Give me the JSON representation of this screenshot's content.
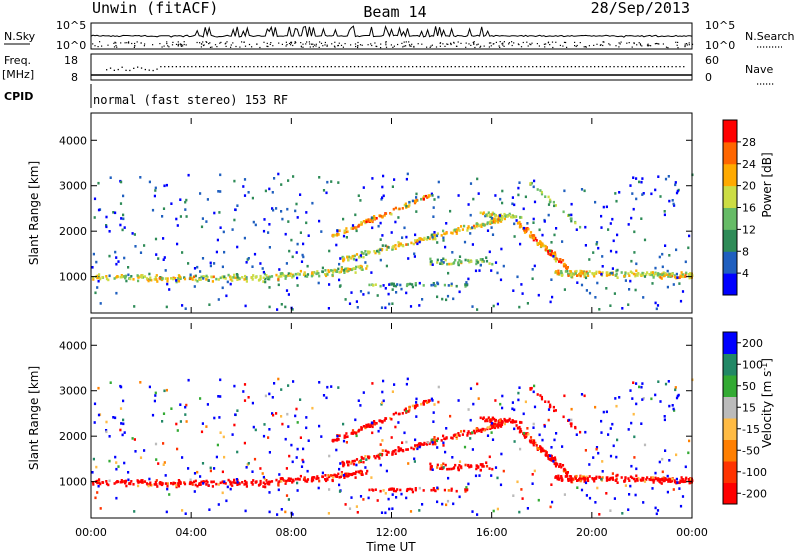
{
  "header": {
    "title": "Unwin (fitACF)",
    "beam": "Beam 14",
    "date": "28/Sep/2013"
  },
  "noise_panel": {
    "left_label": "N.Sky",
    "right_label": "N.Search",
    "tick_top": "10^5",
    "tick_bottom": "10^0"
  },
  "freq_panel": {
    "left_label_1": "Freq.",
    "left_label_2": "[MHz]",
    "right_label": "Nave",
    "left_ticks": [
      "18",
      "8"
    ],
    "right_ticks": [
      "60",
      "0"
    ]
  },
  "cpid_panel": {
    "label": "CPID",
    "text": "normal (fast stereo) 153 RF"
  },
  "colors": {
    "power_scale": [
      "#0000ff",
      "#1f5fbf",
      "#2e8b57",
      "#66bb66",
      "#ccdd44",
      "#ffaa00",
      "#ff6600",
      "#ff0000"
    ],
    "velocity_scale": [
      "#ff0000",
      "#ff3300",
      "#ff7f00",
      "#ffbb44",
      "#bbbbbb",
      "#33aa33",
      "#228866",
      "#0000ff"
    ]
  },
  "chart_data": [
    {
      "type": "heatmap",
      "name_role": "power",
      "ylabel": "Slant Range [km]",
      "y_ticks": [
        "1000",
        "2000",
        "3000",
        "4000"
      ],
      "ylim": [
        200,
        4600
      ],
      "colorbar_label": "Power [dB]",
      "colorbar_ticks": [
        "4",
        "8",
        "12",
        "16",
        "20",
        "24",
        "28"
      ],
      "colorbar_range": [
        0,
        32
      ]
    },
    {
      "type": "heatmap",
      "name_role": "velocity",
      "ylabel": "Slant Range [km]",
      "y_ticks": [
        "1000",
        "2000",
        "3000",
        "4000"
      ],
      "ylim": [
        200,
        4600
      ],
      "colorbar_label": "Velocity [m s^-1]",
      "colorbar_ticks": [
        "200",
        "100",
        "50",
        "15",
        "-15",
        "-50",
        "-100",
        "-200"
      ],
      "xlabel": "Time UT",
      "x_ticks": [
        "00:00",
        "04:00",
        "08:00",
        "12:00",
        "16:00",
        "20:00",
        "00:00"
      ],
      "xlim_hours": [
        0,
        24
      ]
    }
  ]
}
